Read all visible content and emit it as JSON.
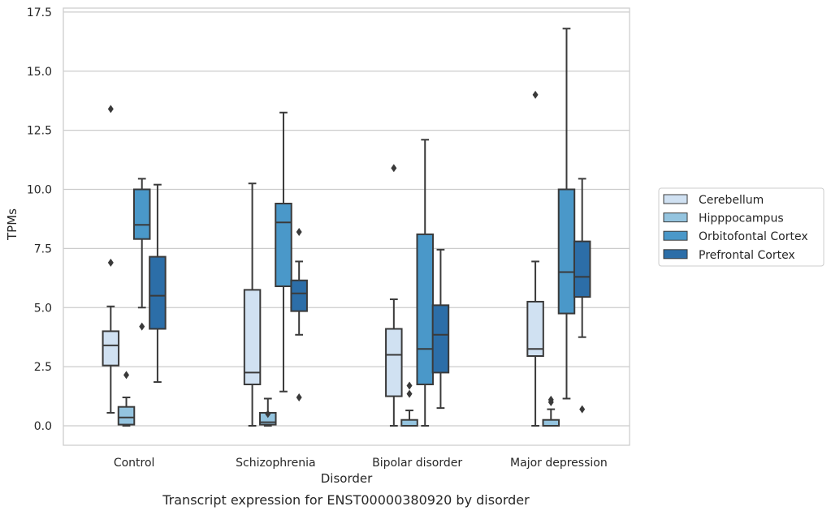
{
  "chart_data": {
    "type": "box",
    "xlabel": "Disorder",
    "ylabel": "TPMs",
    "caption": "Transcript expression for ENST00000380920 by disorder",
    "ylim": [
      -0.8,
      17.6
    ],
    "yticks": [
      "0.0",
      "2.5",
      "5.0",
      "7.5",
      "10.0",
      "12.5",
      "15.0",
      "17.5"
    ],
    "ytick_values": [
      0,
      2.5,
      5,
      7.5,
      10,
      12.5,
      15,
      17.5
    ],
    "grid": "horizontal",
    "legend_placement": "right",
    "categories": [
      "Control",
      "Schizophrenia",
      "Bipolar disorder",
      "Major depression"
    ],
    "series": [
      {
        "name": "Cerebellum",
        "color": "#d0e1f2",
        "boxes": [
          {
            "whislo": 0.55,
            "q1": 2.55,
            "med": 3.4,
            "q3": 4.0,
            "whishi": 5.05,
            "fliers": [
              6.9,
              13.4
            ]
          },
          {
            "whislo": 0.0,
            "q1": 1.75,
            "med": 2.25,
            "q3": 5.75,
            "whishi": 10.25,
            "fliers": []
          },
          {
            "whislo": 0.0,
            "q1": 1.25,
            "med": 3.0,
            "q3": 4.1,
            "whishi": 5.35,
            "fliers": [
              10.9
            ]
          },
          {
            "whislo": 0.0,
            "q1": 2.95,
            "med": 3.25,
            "q3": 5.25,
            "whishi": 6.95,
            "fliers": [
              14.0
            ]
          }
        ]
      },
      {
        "name": "Hipppocampus",
        "color": "#94c4df",
        "boxes": [
          {
            "whislo": 0.0,
            "q1": 0.05,
            "med": 0.35,
            "q3": 0.8,
            "whishi": 1.2,
            "fliers": [
              2.15
            ]
          },
          {
            "whislo": 0.0,
            "q1": 0.05,
            "med": 0.15,
            "q3": 0.55,
            "whishi": 1.15,
            "fliers": [
              0.5
            ]
          },
          {
            "whislo": 0.0,
            "q1": 0.0,
            "med": 0.0,
            "q3": 0.25,
            "whishi": 0.65,
            "fliers": [
              1.35,
              1.7
            ]
          },
          {
            "whislo": 0.0,
            "q1": 0.0,
            "med": 0.0,
            "q3": 0.25,
            "whishi": 0.7,
            "fliers": [
              1.0,
              1.1
            ]
          }
        ]
      },
      {
        "name": "Orbitofontal Cortex",
        "color": "#4a98c9",
        "boxes": [
          {
            "whislo": 5.0,
            "q1": 7.9,
            "med": 8.5,
            "q3": 10.0,
            "whishi": 10.45,
            "fliers": [
              4.2
            ]
          },
          {
            "whislo": 1.45,
            "q1": 5.9,
            "med": 8.6,
            "q3": 9.4,
            "whishi": 13.25,
            "fliers": []
          },
          {
            "whislo": 0.0,
            "q1": 1.75,
            "med": 3.25,
            "q3": 8.1,
            "whishi": 12.1,
            "fliers": []
          },
          {
            "whislo": 1.15,
            "q1": 4.75,
            "med": 6.5,
            "q3": 10.0,
            "whishi": 16.8,
            "fliers": []
          }
        ]
      },
      {
        "name": "Prefrontal Cortex",
        "color": "#2c6ea8",
        "boxes": [
          {
            "whislo": 1.85,
            "q1": 4.1,
            "med": 5.5,
            "q3": 7.15,
            "whishi": 10.2,
            "fliers": []
          },
          {
            "whislo": 3.85,
            "q1": 4.85,
            "med": 5.6,
            "q3": 6.15,
            "whishi": 6.95,
            "fliers": [
              8.2,
              1.2
            ]
          },
          {
            "whislo": 0.75,
            "q1": 2.25,
            "med": 3.85,
            "q3": 5.1,
            "whishi": 7.45,
            "fliers": []
          },
          {
            "whislo": 3.75,
            "q1": 5.45,
            "med": 6.3,
            "q3": 7.8,
            "whishi": 10.45,
            "fliers": [
              0.7
            ]
          }
        ]
      }
    ]
  }
}
